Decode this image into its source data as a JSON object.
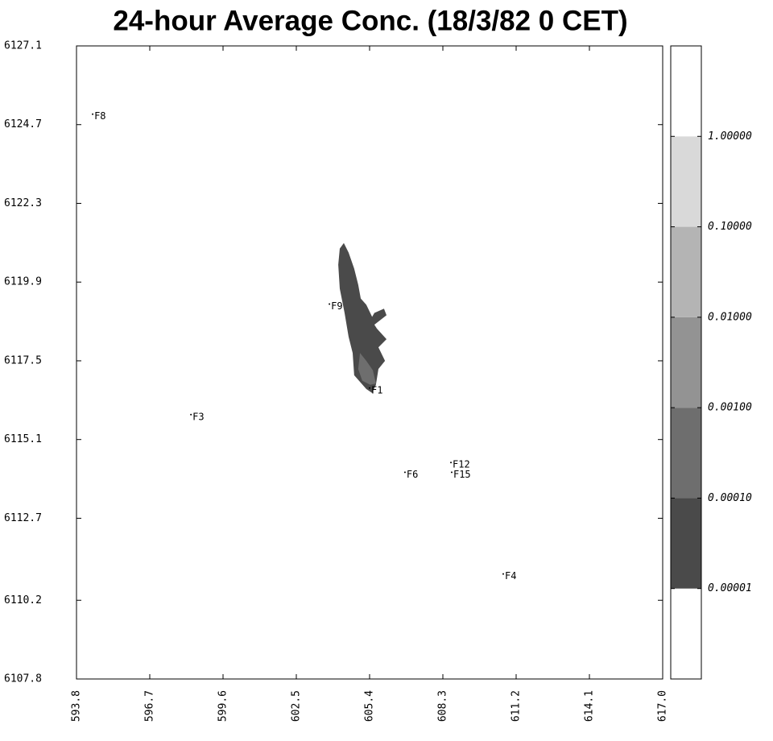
{
  "chart_data": {
    "type": "contour",
    "title": "24-hour Average Conc. (18/3/82 0 CET)",
    "xlim": [
      593.8,
      617.0
    ],
    "ylim": [
      6107.8,
      6127.1
    ],
    "xticks": [
      593.8,
      596.7,
      599.6,
      602.5,
      605.4,
      608.3,
      611.2,
      614.1,
      {
        "value": 617.0,
        "label": "617.0"
      }
    ],
    "yticks": [
      6107.8,
      6110.2,
      6112.7,
      6115.1,
      6117.5,
      6119.9,
      6122.3,
      6124.7,
      6127.1
    ],
    "levels": [
      {
        "value": 1e-05,
        "label": "0.00001"
      },
      {
        "value": 0.0001,
        "label": "0.00010"
      },
      {
        "value": 0.001,
        "label": "0.00100"
      },
      {
        "value": 0.01,
        "label": "0.01000"
      },
      {
        "value": 0.1,
        "label": "0.10000"
      },
      {
        "value": 1,
        "label": "1.00000"
      }
    ],
    "level_colors": [
      "#ffffff",
      "#4a4a4a",
      "#6e6e6e",
      "#939393",
      "#b4b4b4",
      "#d9d9d9",
      "#ffffff"
    ],
    "contours": [
      {
        "level": 1,
        "points": [
          [
            604.38,
            6121.09
          ],
          [
            604.57,
            6120.8
          ],
          [
            604.79,
            6120.31
          ],
          [
            604.95,
            6119.82
          ],
          [
            605.05,
            6119.4
          ],
          [
            605.27,
            6119.21
          ],
          [
            605.5,
            6118.84
          ],
          [
            605.59,
            6118.96
          ],
          [
            605.97,
            6119.09
          ],
          [
            606.07,
            6118.89
          ],
          [
            605.59,
            6118.6
          ],
          [
            605.69,
            6118.48
          ],
          [
            606.07,
            6118.16
          ],
          [
            605.75,
            6117.91
          ],
          [
            606.01,
            6117.5
          ],
          [
            605.75,
            6117.25
          ],
          [
            605.65,
            6116.77
          ],
          [
            605.5,
            6116.52
          ],
          [
            605.27,
            6116.64
          ],
          [
            604.79,
            6117.06
          ],
          [
            604.73,
            6117.74
          ],
          [
            604.57,
            6118.23
          ],
          [
            604.41,
            6118.96
          ],
          [
            604.22,
            6119.7
          ],
          [
            604.16,
            6120.43
          ],
          [
            604.22,
            6120.92
          ]
        ]
      },
      {
        "level": 2,
        "points": [
          [
            605.02,
            6117.74
          ],
          [
            605.27,
            6117.5
          ],
          [
            605.53,
            6117.21
          ],
          [
            605.65,
            6116.81
          ],
          [
            605.43,
            6116.77
          ],
          [
            605.11,
            6116.89
          ],
          [
            604.95,
            6117.25
          ]
        ]
      }
    ],
    "stations": {
      "labels": [
        "F8",
        "F9",
        "F1",
        "F3",
        "F6",
        "F12",
        "F15",
        "F4"
      ],
      "x": [
        594.44,
        603.81,
        605.4,
        598.33,
        606.8,
        608.62,
        608.65,
        610.69
      ],
      "y": [
        6125.02,
        6119.23,
        6116.67,
        6115.86,
        6114.1,
        6114.4,
        6114.1,
        6111.0
      ]
    }
  }
}
